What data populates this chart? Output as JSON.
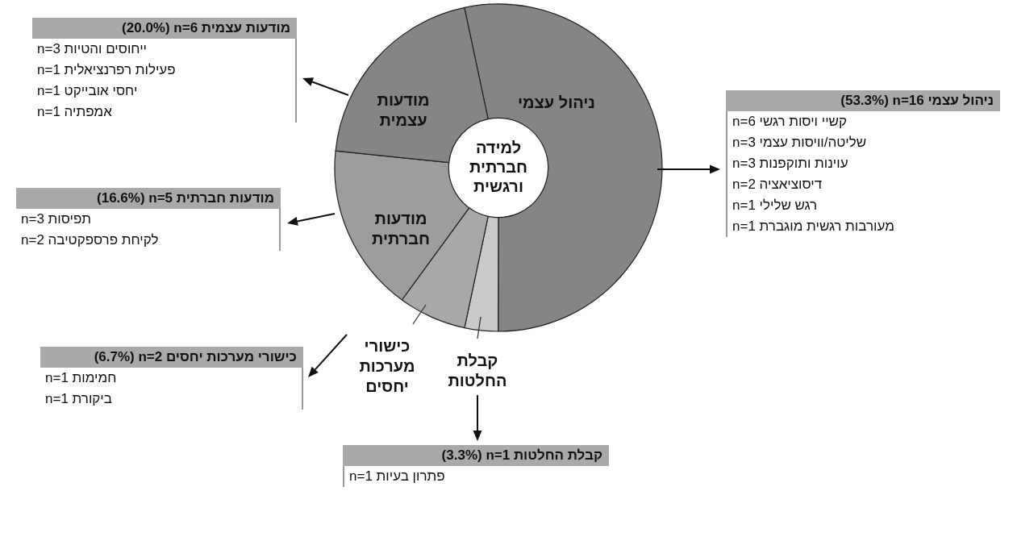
{
  "chart_data": {
    "type": "donut",
    "title": "למידה חברתית ורגשית",
    "categories": [
      "ניהול עצמי",
      "קבלת החלטות",
      "כישורי מערכות יחסים",
      "מודעות חברתית",
      "מודעות עצמית"
    ],
    "values": [
      53.3,
      3.3,
      6.7,
      16.6,
      20.0
    ],
    "colors": [
      "#858585",
      "#c9c9c9",
      "#a8a8a8",
      "#9d9d9d",
      "#858585"
    ],
    "legend": false,
    "annotations": [
      "(53.3%) n=16 ניהול עצמי\nn=6 קשיי ויסות רגשי\nn=3 שליטה/וויסות עצמי\nn=3 עוינות ותוקפנות\nn=2 דיסוציאציה\nn=1 רגש שלילי\nn=1 מעורבות רגשית מוגברת",
      "(3.3%) n=1 קבלת החלטות\nn=1 פתרון בעיות",
      "(6.7%) n=2 כישורי מערכות יחסים\nn=1 חמימות\nn=1 ביקורת",
      "(16.6%) n=5 מודעות חברתית\nn=3 תפיסות\nn=2 לקיחת פרספקטיבה",
      "(20.0%) n=6 מודעות עצמית\nn=3 ייחוסים והטיות\nn=1 פעילות רפרנציאלית\nn=1 יחסי אובייקט\nn=1 אמפתיה"
    ]
  }
}
